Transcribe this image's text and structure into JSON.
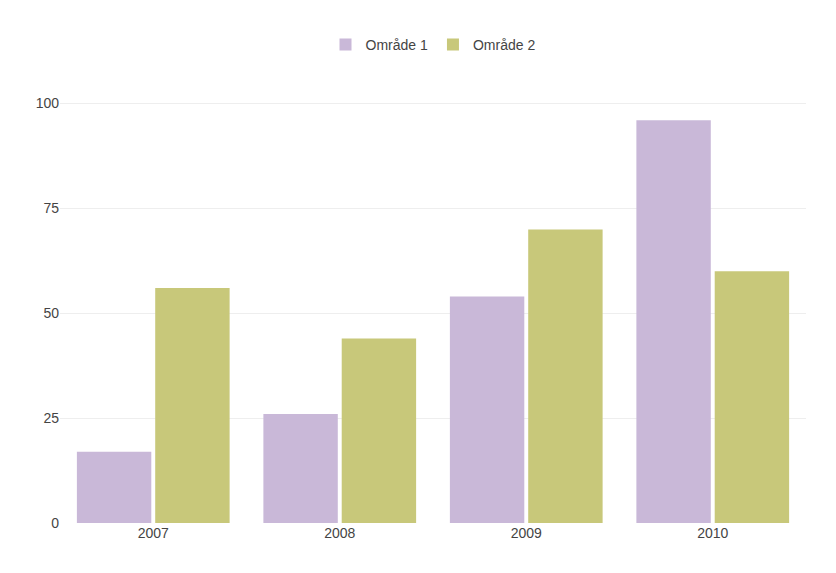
{
  "chart_data": {
    "type": "bar",
    "categories": [
      "2007",
      "2008",
      "2009",
      "2010"
    ],
    "series": [
      {
        "name": "Område 1",
        "color": "#c9b8d8",
        "values": [
          17,
          26,
          54,
          96
        ]
      },
      {
        "name": "Område 2",
        "color": "#c8c87a",
        "values": [
          56,
          44,
          70,
          60
        ]
      }
    ],
    "ylim": [
      0,
      108
    ],
    "yticks": [
      0,
      25,
      50,
      75,
      100
    ],
    "grid": true,
    "legend": "top"
  }
}
